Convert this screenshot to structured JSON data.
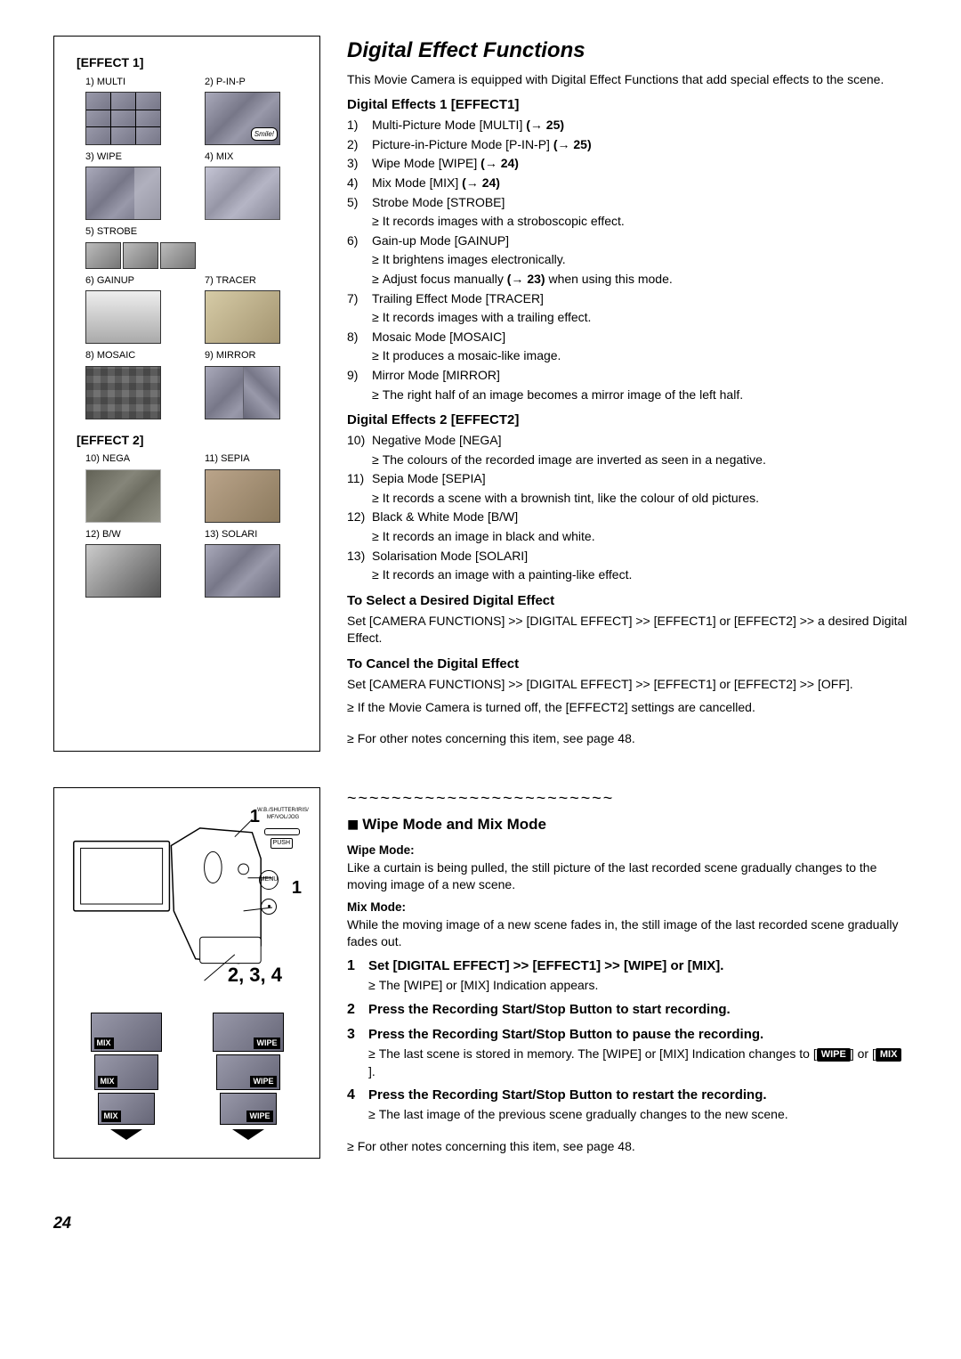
{
  "page_number": "24",
  "top": {
    "title": "Digital Effect Functions",
    "intro": "This Movie Camera is equipped with Digital Effect Functions that add special effects to the scene.",
    "effects1_heading": "Digital Effects 1 [EFFECT1]",
    "effects1": [
      {
        "n": "1)",
        "text": "Multi-Picture Mode [MULTI] ",
        "ref": "(→ 25)"
      },
      {
        "n": "2)",
        "text": "Picture-in-Picture Mode [P-IN-P] ",
        "ref": "(→ 25)"
      },
      {
        "n": "3)",
        "text": "Wipe Mode [WIPE] ",
        "ref": "(→ 24)"
      },
      {
        "n": "4)",
        "text": "Mix Mode [MIX] ",
        "ref": "(→ 24)"
      },
      {
        "n": "5)",
        "text": "Strobe Mode [STROBE]",
        "sub": "It records images with a stroboscopic effect."
      },
      {
        "n": "6)",
        "text": "Gain-up Mode [GAINUP]",
        "sub": "It brightens images electronically.",
        "sub2_pre": "Adjust focus manually ",
        "sub2_ref": "(→ 23)",
        "sub2_post": " when using this mode."
      },
      {
        "n": "7)",
        "text": "Trailing Effect Mode [TRACER]",
        "sub": "It records images with a trailing effect."
      },
      {
        "n": "8)",
        "text": "Mosaic Mode [MOSAIC]",
        "sub": "It produces a mosaic-like image."
      },
      {
        "n": "9)",
        "text": "Mirror Mode [MIRROR]",
        "sub": "The right half of an image becomes a mirror image of the left half."
      }
    ],
    "effects2_heading": "Digital Effects 2  [EFFECT2]",
    "effects2": [
      {
        "n": "10)",
        "text": "Negative Mode [NEGA]",
        "sub": "The colours of the recorded image are inverted as seen in a negative."
      },
      {
        "n": "11)",
        "text": "Sepia Mode [SEPIA]",
        "sub": "It records a scene with a brownish tint, like the colour of old pictures."
      },
      {
        "n": "12)",
        "text": "Black & White Mode [B/W]",
        "sub": "It records an image in black and white."
      },
      {
        "n": "13)",
        "text": "Solarisation Mode [SOLARI]",
        "sub": "It records an image with a painting-like effect."
      }
    ],
    "select_heading": "To Select a Desired Digital Effect",
    "select_text": "Set [CAMERA FUNCTIONS] >> [DIGITAL EFFECT] >> [EFFECT1] or [EFFECT2] >> a desired Digital Effect.",
    "cancel_heading": "To Cancel the Digital Effect",
    "cancel_text": "Set [CAMERA FUNCTIONS] >> [DIGITAL EFFECT] >> [EFFECT1] or [EFFECT2] >> [OFF].",
    "cancel_bullet": "If the Movie Camera is turned off, the [EFFECT2] settings are cancelled.",
    "notes_bullet": "For other notes concerning this item, see page 48."
  },
  "left_top": {
    "effect1_label": "[EFFECT 1]",
    "effect2_label": "[EFFECT 2]",
    "thumbs1": [
      {
        "cap": "1) MULTI",
        "cls": "multi"
      },
      {
        "cap": "2) P-IN-P",
        "cls": "pinp",
        "bubble": "Smile!"
      },
      {
        "cap": "3) WIPE",
        "cls": "wipe"
      },
      {
        "cap": "4) MIX",
        "cls": "mix"
      },
      {
        "cap": "5) STROBE",
        "cls": "strobe",
        "span2": true
      },
      {
        "cap": "6) GAINUP",
        "cls": "gainup-img"
      },
      {
        "cap": "7) TRACER",
        "cls": "tracer-img"
      },
      {
        "cap": "8) MOSAIC",
        "cls": "mosaic-img"
      },
      {
        "cap": "9) MIRROR",
        "cls": "mirror"
      }
    ],
    "thumbs2": [
      {
        "cap": "10) NEGA",
        "cls": "nega"
      },
      {
        "cap": "11) SEPIA",
        "cls": "sepia"
      },
      {
        "cap": "12) B/W",
        "cls": "bw"
      },
      {
        "cap": "13) SOLARI",
        "cls": ""
      }
    ]
  },
  "bottom": {
    "tilde": "~~~~~~~~~~~~~~~~~~~~~~~~",
    "heading": "Wipe Mode and Mix Mode",
    "wipe_label": "Wipe Mode:",
    "wipe_text": "Like a curtain is being pulled, the still picture of the last recorded scene gradually changes to the moving image of a new scene.",
    "mix_label": "Mix Mode:",
    "mix_text": "While the moving image of a new scene fades in, the still image of the last recorded scene gradually fades out.",
    "steps": [
      {
        "n": "1",
        "t": "Set [DIGITAL EFFECT] >> [EFFECT1] >> [WIPE] or [MIX].",
        "sub": "The [WIPE] or [MIX] Indication appears."
      },
      {
        "n": "2",
        "t": "Press the Recording Start/Stop Button to start recording."
      },
      {
        "n": "3",
        "t": "Press the Recording Start/Stop Button to pause the recording.",
        "sub_pre": "The last scene is stored in memory. The [WIPE] or [MIX] Indication changes to [",
        "tag1": "WIPE",
        "mid": "] or [",
        "tag2": "MIX",
        "sub_post": "]."
      },
      {
        "n": "4",
        "t": "Press the Recording Start/Stop Button to restart the recording.",
        "sub": "The last image of the previous scene gradually changes to the new scene."
      }
    ],
    "notes_bullet": "For other notes concerning this item, see page 48."
  },
  "cam": {
    "callout1": "1",
    "callout1b": "1",
    "callout234": "2, 3, 4",
    "dial_text": "W.B./SHUTTER/IRIS/\nMF/VOL/JOG",
    "push": "PUSH",
    "menu": "MENU",
    "mix_label": "MIX",
    "wipe_label": "WIPE"
  }
}
